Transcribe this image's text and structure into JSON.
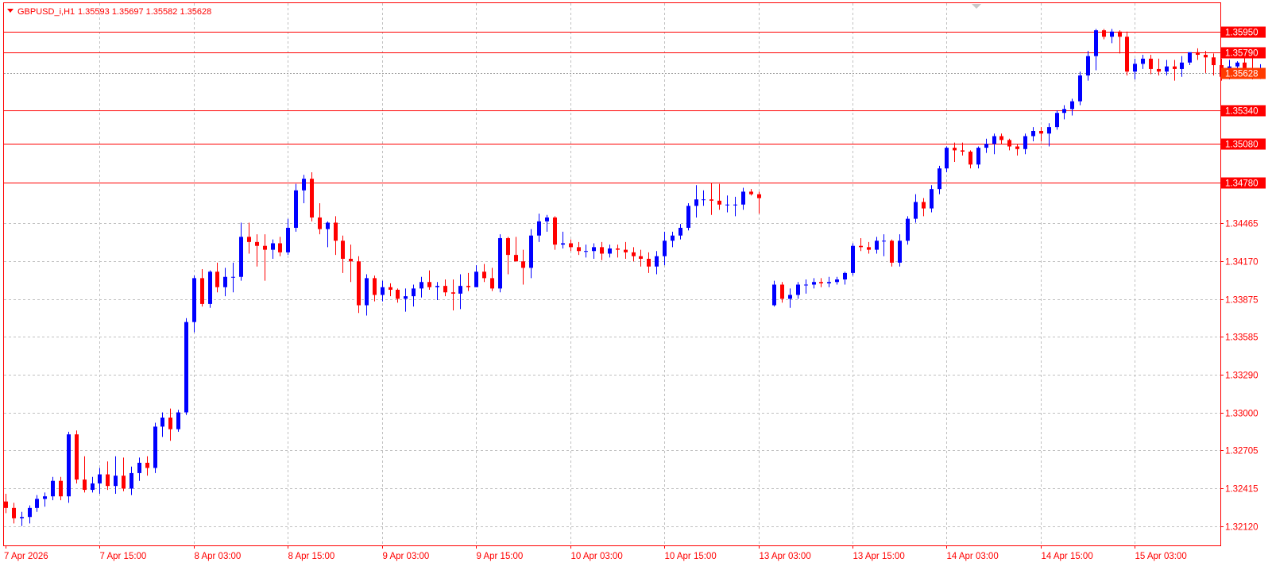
{
  "header": {
    "symbol": "GBPUSD_i,H1",
    "ohlc": "1.35593 1.35697 1.35582 1.35628",
    "menu_icon": "triangle-down-icon"
  },
  "colors": {
    "frame": "#ff0000",
    "bull": "#0000ff",
    "bear": "#ff0000",
    "grid": "#c0c0c0",
    "text": "#ff0000",
    "label_bg": "#ff0000",
    "current_bg": "#ff3b00"
  },
  "chart_data": {
    "type": "candlestick",
    "grid": true,
    "yaxis": {
      "min": 1.3197,
      "max": 1.3617,
      "ticks": [
        "1.32120",
        "1.32415",
        "1.32705",
        "1.33000",
        "1.33290",
        "1.33585",
        "1.33875",
        "1.34170",
        "1.34465"
      ]
    },
    "xaxis": {
      "labels": [
        "7 Apr 2026",
        "7 Apr 15:00",
        "8 Apr 03:00",
        "8 Apr 15:00",
        "9 Apr 03:00",
        "9 Apr 15:00",
        "10 Apr 03:00",
        "10 Apr 15:00",
        "13 Apr 03:00",
        "13 Apr 15:00",
        "14 Apr 03:00",
        "14 Apr 15:00",
        "15 Apr 03:00"
      ]
    },
    "levels": [
      {
        "label": "1.35950",
        "value": 1.3595
      },
      {
        "label": "1.35790",
        "value": 1.3579
      },
      {
        "label": "1.35340",
        "value": 1.3534
      },
      {
        "label": "1.35080",
        "value": 1.3508
      },
      {
        "label": "1.34780",
        "value": 1.3478
      }
    ],
    "current_price": {
      "label": "1.35628",
      "value": 1.35628
    },
    "candles": [
      [
        1.3231,
        1.3237,
        1.3222,
        1.3226
      ],
      [
        1.3226,
        1.323,
        1.3214,
        1.3218
      ],
      [
        1.3218,
        1.3223,
        1.3212,
        1.3219
      ],
      [
        1.3219,
        1.3228,
        1.3214,
        1.3226
      ],
      [
        1.3226,
        1.3236,
        1.3223,
        1.3233
      ],
      [
        1.3233,
        1.3238,
        1.3227,
        1.3235
      ],
      [
        1.3235,
        1.325,
        1.3232,
        1.3247
      ],
      [
        1.3247,
        1.325,
        1.3232,
        1.3235
      ],
      [
        1.3235,
        1.3285,
        1.323,
        1.3283
      ],
      [
        1.3283,
        1.3286,
        1.3245,
        1.3248
      ],
      [
        1.3248,
        1.3266,
        1.3238,
        1.324
      ],
      [
        1.324,
        1.325,
        1.3238,
        1.3245
      ],
      [
        1.3245,
        1.3257,
        1.3237,
        1.3252
      ],
      [
        1.3252,
        1.3262,
        1.324,
        1.3243
      ],
      [
        1.3243,
        1.3266,
        1.3237,
        1.3251
      ],
      [
        1.3251,
        1.3265,
        1.3239,
        1.3241
      ],
      [
        1.3241,
        1.3258,
        1.3236,
        1.3253
      ],
      [
        1.3253,
        1.3265,
        1.3247,
        1.3261
      ],
      [
        1.3261,
        1.3266,
        1.3251,
        1.3257
      ],
      [
        1.3257,
        1.3292,
        1.3253,
        1.3289
      ],
      [
        1.3289,
        1.33,
        1.3281,
        1.3296
      ],
      [
        1.3296,
        1.3303,
        1.3278,
        1.3287
      ],
      [
        1.3287,
        1.3302,
        1.3285,
        1.33
      ],
      [
        1.33,
        1.3373,
        1.3298,
        1.337
      ],
      [
        1.337,
        1.3406,
        1.3362,
        1.3404
      ],
      [
        1.3404,
        1.3411,
        1.3382,
        1.3384
      ],
      [
        1.3384,
        1.341,
        1.3381,
        1.3409
      ],
      [
        1.3409,
        1.3416,
        1.3393,
        1.3397
      ],
      [
        1.3397,
        1.3412,
        1.339,
        1.3405
      ],
      [
        1.3405,
        1.3416,
        1.3393,
        1.3405
      ],
      [
        1.3405,
        1.3447,
        1.3402,
        1.3436
      ],
      [
        1.3436,
        1.3447,
        1.3423,
        1.3432
      ],
      [
        1.3432,
        1.3438,
        1.3413,
        1.3429
      ],
      [
        1.3429,
        1.3438,
        1.3402,
        1.3426
      ],
      [
        1.3426,
        1.3434,
        1.3419,
        1.3431
      ],
      [
        1.3431,
        1.3436,
        1.3421,
        1.3424
      ],
      [
        1.3424,
        1.345,
        1.3422,
        1.3443
      ],
      [
        1.3443,
        1.3477,
        1.344,
        1.3472
      ],
      [
        1.3472,
        1.3484,
        1.3462,
        1.3481
      ],
      [
        1.3481,
        1.3486,
        1.3448,
        1.3451
      ],
      [
        1.3451,
        1.3462,
        1.3438,
        1.3442
      ],
      [
        1.3442,
        1.3448,
        1.3428,
        1.3447
      ],
      [
        1.3447,
        1.3452,
        1.3422,
        1.3433
      ],
      [
        1.3433,
        1.3437,
        1.3408,
        1.3419
      ],
      [
        1.3419,
        1.343,
        1.3401,
        1.3417
      ],
      [
        1.3417,
        1.3421,
        1.3377,
        1.3383
      ],
      [
        1.3383,
        1.3407,
        1.3375,
        1.3404
      ],
      [
        1.3404,
        1.3406,
        1.3386,
        1.3391
      ],
      [
        1.3391,
        1.3402,
        1.3386,
        1.3397
      ],
      [
        1.3397,
        1.34,
        1.339,
        1.3395
      ],
      [
        1.3395,
        1.3396,
        1.3385,
        1.3388
      ],
      [
        1.3388,
        1.3396,
        1.3378,
        1.339
      ],
      [
        1.339,
        1.3399,
        1.3382,
        1.3396
      ],
      [
        1.3396,
        1.3405,
        1.3389,
        1.3401
      ],
      [
        1.3401,
        1.341,
        1.3395,
        1.3397
      ],
      [
        1.3397,
        1.3401,
        1.3387,
        1.3398
      ],
      [
        1.3398,
        1.3403,
        1.339,
        1.3393
      ],
      [
        1.3393,
        1.3403,
        1.3379,
        1.3392
      ],
      [
        1.3392,
        1.3407,
        1.338,
        1.3398
      ],
      [
        1.3398,
        1.3408,
        1.3394,
        1.3397
      ],
      [
        1.3397,
        1.3414,
        1.3397,
        1.3409
      ],
      [
        1.3409,
        1.3415,
        1.3401,
        1.3404
      ],
      [
        1.3404,
        1.3412,
        1.3394,
        1.3396
      ],
      [
        1.3396,
        1.3438,
        1.3393,
        1.3435
      ],
      [
        1.3435,
        1.3436,
        1.3407,
        1.3422
      ],
      [
        1.3422,
        1.3436,
        1.3417,
        1.3417
      ],
      [
        1.3417,
        1.3426,
        1.3399,
        1.3412
      ],
      [
        1.3412,
        1.3442,
        1.3404,
        1.3437
      ],
      [
        1.3437,
        1.3454,
        1.3432,
        1.3448
      ],
      [
        1.3448,
        1.3453,
        1.344,
        1.3451
      ],
      [
        1.3451,
        1.3452,
        1.3426,
        1.343
      ],
      [
        1.343,
        1.344,
        1.3427,
        1.3431
      ],
      [
        1.3431,
        1.3434,
        1.3425,
        1.3428
      ],
      [
        1.3428,
        1.3432,
        1.3422,
        1.3425
      ],
      [
        1.3425,
        1.343,
        1.342,
        1.3425
      ],
      [
        1.3425,
        1.3431,
        1.3419,
        1.3428
      ],
      [
        1.3428,
        1.3432,
        1.3418,
        1.3423
      ],
      [
        1.3423,
        1.343,
        1.342,
        1.3427
      ],
      [
        1.3427,
        1.343,
        1.342,
        1.3426
      ],
      [
        1.3426,
        1.3432,
        1.3419,
        1.3424
      ],
      [
        1.3424,
        1.3428,
        1.3417,
        1.3421
      ],
      [
        1.3421,
        1.3426,
        1.3413,
        1.3419
      ],
      [
        1.3419,
        1.3424,
        1.3408,
        1.3413
      ],
      [
        1.3413,
        1.3425,
        1.3407,
        1.3421
      ],
      [
        1.3421,
        1.344,
        1.3414,
        1.3433
      ],
      [
        1.3433,
        1.344,
        1.3428,
        1.3437
      ],
      [
        1.3437,
        1.3446,
        1.3434,
        1.3443
      ],
      [
        1.3443,
        1.3462,
        1.3441,
        1.346
      ],
      [
        1.346,
        1.3476,
        1.3451,
        1.3465
      ],
      [
        1.3465,
        1.3472,
        1.346,
        1.3465
      ],
      [
        1.3465,
        1.3478,
        1.3453,
        1.3464
      ],
      [
        1.3464,
        1.3477,
        1.3457,
        1.3461
      ],
      [
        1.3461,
        1.3468,
        1.3455,
        1.3461
      ],
      [
        1.3461,
        1.3467,
        1.3452,
        1.3461
      ],
      [
        1.3461,
        1.3474,
        1.3457,
        1.3471
      ],
      [
        1.3471,
        1.3473,
        1.3468,
        1.3469
      ],
      [
        1.3469,
        1.3471,
        1.3454,
        1.3466
      ],
      null,
      [
        1.3383,
        1.3402,
        1.3382,
        1.3399
      ],
      [
        1.3399,
        1.3401,
        1.3385,
        1.3388
      ],
      [
        1.3388,
        1.3396,
        1.3381,
        1.3391
      ],
      [
        1.3391,
        1.3401,
        1.3388,
        1.3399
      ],
      [
        1.3399,
        1.3403,
        1.3392,
        1.3399
      ],
      [
        1.3399,
        1.3404,
        1.3396,
        1.3401
      ],
      [
        1.3401,
        1.3404,
        1.3397,
        1.34
      ],
      [
        1.34,
        1.3405,
        1.3397,
        1.3401
      ],
      [
        1.3401,
        1.3405,
        1.3399,
        1.3403
      ],
      [
        1.3403,
        1.3409,
        1.3399,
        1.3408
      ],
      [
        1.3408,
        1.3431,
        1.3406,
        1.3429
      ],
      [
        1.3429,
        1.3435,
        1.3425,
        1.3428
      ],
      [
        1.3428,
        1.3432,
        1.3423,
        1.3426
      ],
      [
        1.3426,
        1.3436,
        1.3423,
        1.3433
      ],
      [
        1.3433,
        1.3438,
        1.3421,
        1.3433
      ],
      [
        1.3433,
        1.3434,
        1.3413,
        1.3416
      ],
      [
        1.3416,
        1.3438,
        1.3413,
        1.3433
      ],
      [
        1.3433,
        1.3452,
        1.343,
        1.345
      ],
      [
        1.345,
        1.3469,
        1.3447,
        1.3463
      ],
      [
        1.3463,
        1.3466,
        1.3452,
        1.3458
      ],
      [
        1.3458,
        1.3476,
        1.3455,
        1.3473
      ],
      [
        1.3473,
        1.3491,
        1.3469,
        1.3489
      ],
      [
        1.3489,
        1.3506,
        1.3486,
        1.3505
      ],
      [
        1.3505,
        1.3509,
        1.3494,
        1.3503
      ],
      [
        1.3503,
        1.3509,
        1.3499,
        1.3502
      ],
      [
        1.3502,
        1.3503,
        1.3489,
        1.3492
      ],
      [
        1.3492,
        1.3506,
        1.3489,
        1.3505
      ],
      [
        1.3505,
        1.3512,
        1.3501,
        1.3508
      ],
      [
        1.3508,
        1.3516,
        1.35,
        1.3514
      ],
      [
        1.3514,
        1.3516,
        1.3508,
        1.3511
      ],
      [
        1.3511,
        1.3512,
        1.3503,
        1.3506
      ],
      [
        1.3506,
        1.3508,
        1.3499,
        1.3504
      ],
      [
        1.3504,
        1.3516,
        1.35,
        1.3514
      ],
      [
        1.3514,
        1.3521,
        1.351,
        1.3518
      ],
      [
        1.3518,
        1.3521,
        1.351,
        1.3516
      ],
      [
        1.3516,
        1.3524,
        1.3506,
        1.3521
      ],
      [
        1.3521,
        1.3534,
        1.3519,
        1.3532
      ],
      [
        1.3532,
        1.3538,
        1.3527,
        1.3535
      ],
      [
        1.3535,
        1.3543,
        1.353,
        1.3541
      ],
      [
        1.3541,
        1.3564,
        1.3538,
        1.3561
      ],
      [
        1.3561,
        1.358,
        1.3557,
        1.3576
      ],
      [
        1.3576,
        1.3597,
        1.3565,
        1.3596
      ],
      [
        1.3596,
        1.3597,
        1.3589,
        1.3591
      ],
      [
        1.3591,
        1.3597,
        1.3586,
        1.3595
      ],
      [
        1.3595,
        1.3596,
        1.3578,
        1.3591
      ],
      [
        1.3591,
        1.3595,
        1.3561,
        1.3564
      ],
      [
        1.3564,
        1.3574,
        1.3558,
        1.357
      ],
      [
        1.357,
        1.3577,
        1.3566,
        1.3574
      ],
      [
        1.3574,
        1.3577,
        1.3562,
        1.3566
      ],
      [
        1.3566,
        1.3574,
        1.3561,
        1.3564
      ],
      [
        1.3564,
        1.3573,
        1.3561,
        1.3568
      ],
      [
        1.3568,
        1.3573,
        1.3557,
        1.3566
      ],
      [
        1.3566,
        1.3576,
        1.356,
        1.3571
      ],
      [
        1.3571,
        1.3578,
        1.3569,
        1.3579
      ],
      [
        1.3579,
        1.3582,
        1.3573,
        1.3577
      ],
      [
        1.3577,
        1.358,
        1.3563,
        1.3575
      ],
      [
        1.3575,
        1.3578,
        1.3561,
        1.3569
      ],
      [
        1.3569,
        1.3574,
        1.3557,
        1.356
      ],
      [
        1.356,
        1.3573,
        1.3558,
        1.3568
      ],
      [
        1.3568,
        1.3572,
        1.3562,
        1.3571
      ],
      [
        1.3571,
        1.3582,
        1.3561,
        1.3566
      ],
      [
        1.3566,
        1.3577,
        1.3558,
        1.3561
      ],
      [
        1.35593,
        1.35697,
        1.35582,
        1.35628
      ]
    ]
  }
}
